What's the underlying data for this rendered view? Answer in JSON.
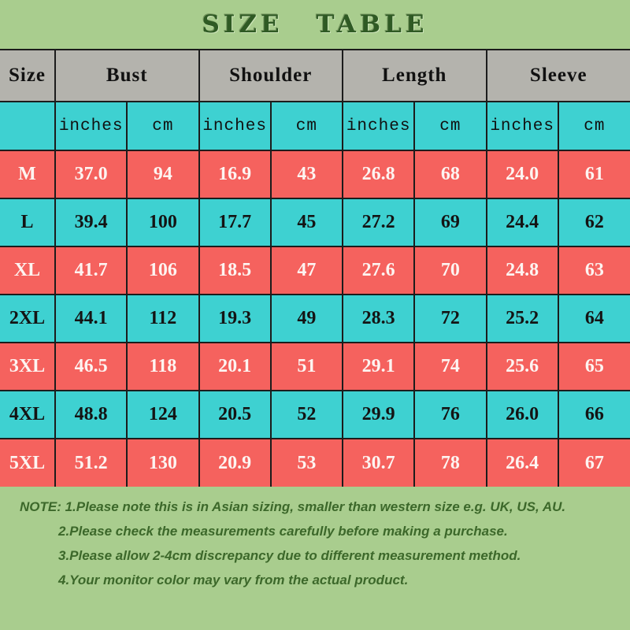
{
  "title": "SIZE TABLE",
  "chart_data": {
    "type": "table",
    "title": "SIZE TABLE",
    "column_groups": [
      "Size",
      "Bust",
      "Shoulder",
      "Length",
      "Sleeve"
    ],
    "unit_row": [
      "inches",
      "cm",
      "inches",
      "cm",
      "inches",
      "cm",
      "inches",
      "cm"
    ],
    "rows": [
      {
        "size": "M",
        "color": "red",
        "values": [
          "37.0",
          "94",
          "16.9",
          "43",
          "26.8",
          "68",
          "24.0",
          "61"
        ]
      },
      {
        "size": "L",
        "color": "cyan",
        "values": [
          "39.4",
          "100",
          "17.7",
          "45",
          "27.2",
          "69",
          "24.4",
          "62"
        ]
      },
      {
        "size": "XL",
        "color": "red",
        "values": [
          "41.7",
          "106",
          "18.5",
          "47",
          "27.6",
          "70",
          "24.8",
          "63"
        ]
      },
      {
        "size": "2XL",
        "color": "cyan",
        "values": [
          "44.1",
          "112",
          "19.3",
          "49",
          "28.3",
          "72",
          "25.2",
          "64"
        ]
      },
      {
        "size": "3XL",
        "color": "red",
        "values": [
          "46.5",
          "118",
          "20.1",
          "51",
          "29.1",
          "74",
          "25.6",
          "65"
        ]
      },
      {
        "size": "4XL",
        "color": "cyan",
        "values": [
          "48.8",
          "124",
          "20.5",
          "52",
          "29.9",
          "76",
          "26.0",
          "66"
        ]
      },
      {
        "size": "5XL",
        "color": "red",
        "values": [
          "51.2",
          "130",
          "20.9",
          "53",
          "30.7",
          "78",
          "26.4",
          "67"
        ]
      }
    ]
  },
  "notes": {
    "line1": "NOTE: 1.Please note this is in Asian sizing, smaller than western size e.g. UK, US, AU.",
    "line2": "2.Please check the measurements carefully before making a purchase.",
    "line3": "3.Please allow 2-4cm discrepancy due to different measurement method.",
    "line4": "4.Your monitor color may vary from the actual product."
  },
  "colors": {
    "background_green": "#a9cd8e",
    "header_gray": "#b4b3ad",
    "cyan": "#3ed1d1",
    "red": "#f5625e",
    "border_black": "#1c1c1c",
    "title_green": "#2f5a24",
    "note_green": "#3c682a",
    "white_text": "#fdf4f1"
  }
}
